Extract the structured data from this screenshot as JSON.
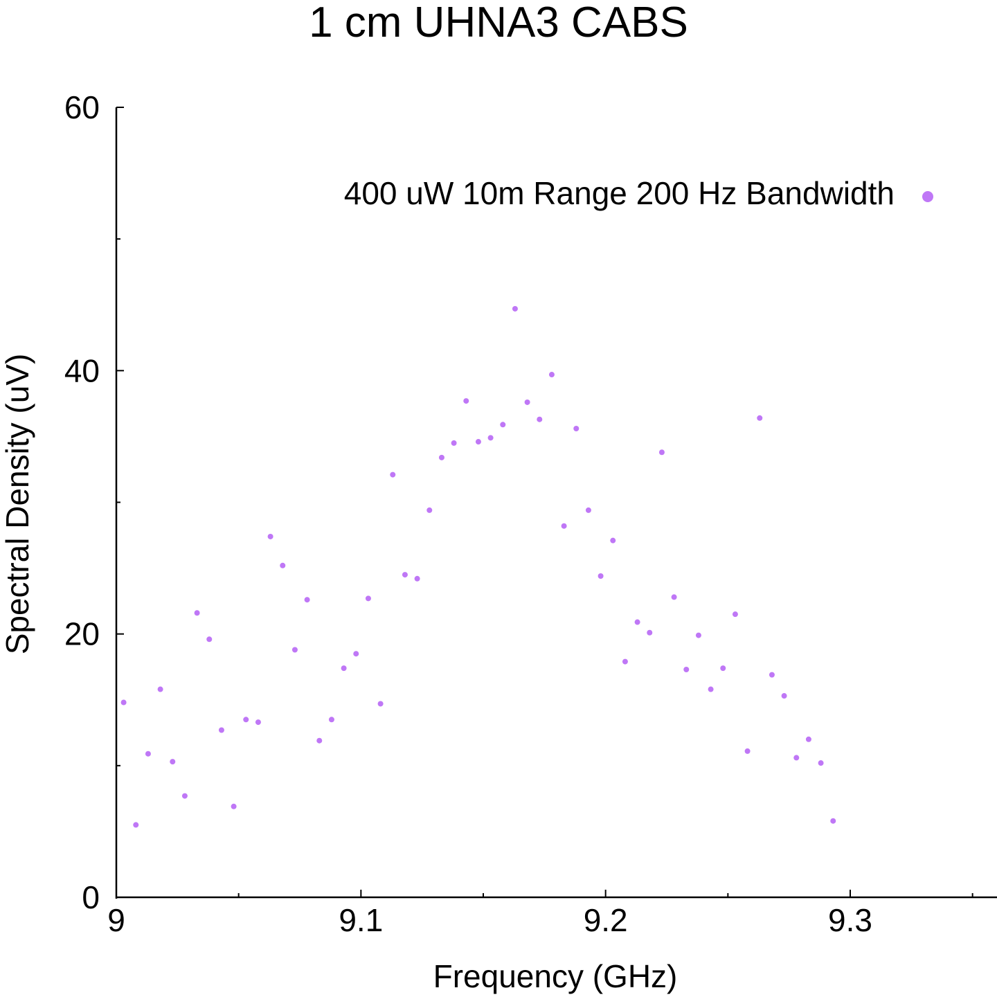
{
  "chart_data": {
    "type": "scatter",
    "title": "1 cm UHNA3 CABS",
    "xlabel": "Frequency (GHz)",
    "ylabel": "Spectral Density (uV)",
    "xlim": [
      9,
      9.36
    ],
    "ylim": [
      0,
      60
    ],
    "x_major_ticks": [
      9,
      9.1,
      9.2,
      9.3
    ],
    "x_tick_labels": [
      "9",
      "9.1",
      "9.2",
      "9.3"
    ],
    "x_minor_ticks": [
      9.05,
      9.15,
      9.25,
      9.35
    ],
    "y_major_ticks": [
      0,
      20,
      40,
      60
    ],
    "y_tick_labels": [
      "0",
      "20",
      "40",
      "60"
    ],
    "y_minor_ticks": [
      10,
      30,
      50
    ],
    "grid": false,
    "legend_position": "top-right",
    "point_color": "#bf77f6",
    "series": [
      {
        "name": "400 uW 10m Range 200 Hz Bandwidth",
        "points": [
          [
            9.003,
            14.8
          ],
          [
            9.008,
            5.5
          ],
          [
            9.013,
            10.9
          ],
          [
            9.018,
            15.8
          ],
          [
            9.023,
            10.3
          ],
          [
            9.028,
            7.7
          ],
          [
            9.033,
            21.6
          ],
          [
            9.038,
            19.6
          ],
          [
            9.043,
            12.7
          ],
          [
            9.048,
            6.9
          ],
          [
            9.053,
            13.5
          ],
          [
            9.058,
            13.3
          ],
          [
            9.063,
            27.4
          ],
          [
            9.068,
            25.2
          ],
          [
            9.073,
            18.8
          ],
          [
            9.078,
            22.6
          ],
          [
            9.083,
            11.9
          ],
          [
            9.088,
            13.5
          ],
          [
            9.093,
            17.4
          ],
          [
            9.098,
            18.5
          ],
          [
            9.103,
            22.7
          ],
          [
            9.108,
            14.7
          ],
          [
            9.113,
            32.1
          ],
          [
            9.118,
            24.5
          ],
          [
            9.123,
            24.2
          ],
          [
            9.128,
            29.4
          ],
          [
            9.133,
            33.4
          ],
          [
            9.138,
            34.5
          ],
          [
            9.143,
            37.7
          ],
          [
            9.148,
            34.6
          ],
          [
            9.153,
            34.9
          ],
          [
            9.158,
            35.9
          ],
          [
            9.163,
            44.7
          ],
          [
            9.168,
            37.6
          ],
          [
            9.173,
            36.3
          ],
          [
            9.178,
            39.7
          ],
          [
            9.183,
            28.2
          ],
          [
            9.188,
            35.6
          ],
          [
            9.193,
            29.4
          ],
          [
            9.198,
            24.4
          ],
          [
            9.203,
            27.1
          ],
          [
            9.208,
            17.9
          ],
          [
            9.213,
            20.9
          ],
          [
            9.218,
            20.1
          ],
          [
            9.223,
            33.8
          ],
          [
            9.228,
            22.8
          ],
          [
            9.233,
            17.3
          ],
          [
            9.238,
            19.9
          ],
          [
            9.243,
            15.8
          ],
          [
            9.248,
            17.4
          ],
          [
            9.253,
            21.5
          ],
          [
            9.258,
            11.1
          ],
          [
            9.263,
            36.4
          ],
          [
            9.268,
            16.9
          ],
          [
            9.273,
            15.3
          ],
          [
            9.278,
            10.6
          ],
          [
            9.283,
            12.0
          ],
          [
            9.288,
            10.2
          ],
          [
            9.293,
            5.8
          ]
        ]
      }
    ]
  }
}
